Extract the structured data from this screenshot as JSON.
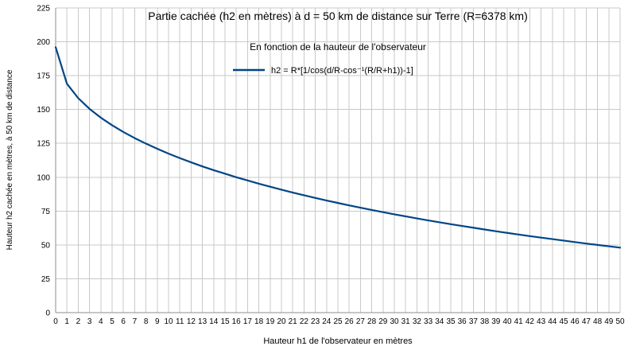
{
  "title": "Partie cachée (h2 en mètres) à d = 50 km de distance sur Terre (R=6378 km)",
  "subtitle": "En fonction de la hauteur de l'observateur",
  "legend": {
    "label": "h2 = R*[1/cos(d/R-cos⁻¹(R/R+h1))-1]"
  },
  "axes": {
    "x_label": "Hauteur h1 de l'observateur en mètres",
    "y_label": "Hauteur h2 cachée en mètres, à 50 km de distance"
  },
  "colors": {
    "series": "#004586",
    "grid": "#c9c9c9",
    "axis": "#8c8c8c",
    "text": "#000000",
    "background": "#ffffff"
  },
  "chart_data": {
    "type": "line",
    "title": "Partie cachée (h2 en mètres) à d = 50 km de distance sur Terre (R=6378 km)",
    "subtitle": "En fonction de la hauteur de l'observateur",
    "xlabel": "Hauteur h1 de l'observateur en mètres",
    "ylabel": "Hauteur h2 cachée en mètres, à 50 km de distance",
    "xlim": [
      0,
      50
    ],
    "ylim": [
      0,
      225
    ],
    "grid": true,
    "legend_position": "inside-top-center",
    "x_ticks": [
      0,
      1,
      2,
      3,
      4,
      5,
      6,
      7,
      8,
      9,
      10,
      11,
      12,
      13,
      14,
      15,
      16,
      17,
      18,
      19,
      20,
      21,
      22,
      23,
      24,
      25,
      26,
      27,
      28,
      29,
      30,
      31,
      32,
      33,
      34,
      35,
      36,
      37,
      38,
      39,
      40,
      41,
      42,
      43,
      44,
      45,
      46,
      47,
      48,
      49,
      50
    ],
    "y_ticks": [
      0,
      25,
      50,
      75,
      100,
      125,
      150,
      175,
      200,
      225
    ],
    "x": [
      0,
      1,
      2,
      3,
      4,
      5,
      6,
      7,
      8,
      9,
      10,
      11,
      12,
      13,
      14,
      15,
      16,
      17,
      18,
      19,
      20,
      21,
      22,
      23,
      24,
      25,
      26,
      27,
      28,
      29,
      30,
      31,
      32,
      33,
      34,
      35,
      36,
      37,
      38,
      39,
      40,
      41,
      42,
      43,
      44,
      45,
      46,
      47,
      48,
      49,
      50
    ],
    "series": [
      {
        "name": "h2 = R*[1/cos(d/R-cos⁻¹(R/R+h1))-1]",
        "color": "#004586",
        "values": [
          196.0,
          169.0,
          158.4,
          150.5,
          144.0,
          138.4,
          133.4,
          128.9,
          124.8,
          121.0,
          117.4,
          114.1,
          111.0,
          108.0,
          105.2,
          102.6,
          100.0,
          97.6,
          95.2,
          93.0,
          90.8,
          88.7,
          86.7,
          84.7,
          82.8,
          81.0,
          79.2,
          77.5,
          75.8,
          74.2,
          72.6,
          71.1,
          69.6,
          68.1,
          66.7,
          65.3,
          64.0,
          62.7,
          61.4,
          60.1,
          58.9,
          57.7,
          56.5,
          55.4,
          54.3,
          53.2,
          52.1,
          51.0,
          50.0,
          49.0,
          48.0
        ]
      }
    ]
  }
}
